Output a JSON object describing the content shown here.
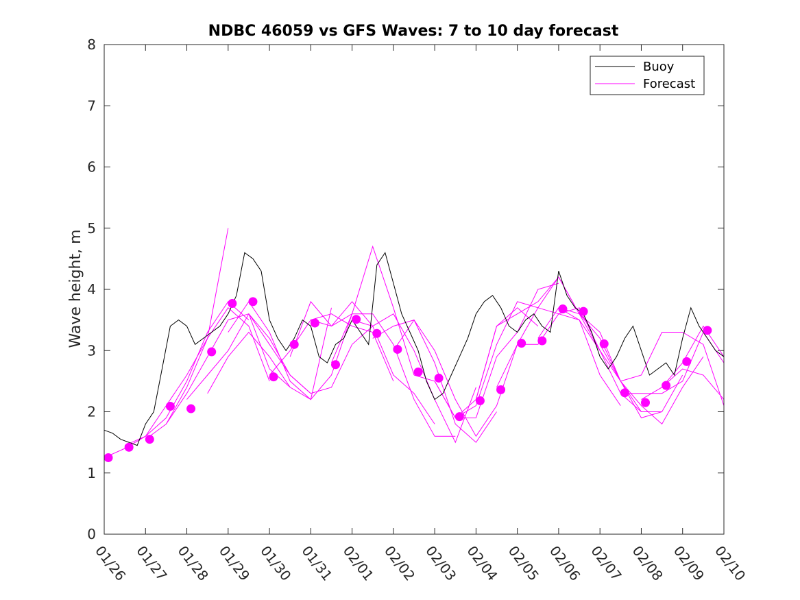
{
  "chart_data": {
    "type": "line",
    "title": "NDBC 46059 vs GFS Waves: 7 to 10 day forecast",
    "xlabel": "",
    "ylabel": "Wave height, m",
    "xlim": [
      0,
      15
    ],
    "ylim": [
      0,
      8
    ],
    "yticks": [
      0,
      1,
      2,
      3,
      4,
      5,
      6,
      7,
      8
    ],
    "xtick_labels": [
      "01/26",
      "01/27",
      "01/28",
      "01/29",
      "01/30",
      "01/31",
      "02/01",
      "02/02",
      "02/03",
      "02/04",
      "02/05",
      "02/06",
      "02/07",
      "02/08",
      "02/09",
      "02/10"
    ],
    "legend": {
      "position": "top-right",
      "entries": [
        "Buoy",
        "Forecast"
      ]
    },
    "colors": {
      "buoy": "#000000",
      "forecast": "#ff00ff"
    },
    "series": [
      {
        "name": "Buoy",
        "x": [
          0.0,
          0.2,
          0.4,
          0.6,
          0.8,
          1.0,
          1.2,
          1.4,
          1.6,
          1.8,
          2.0,
          2.2,
          2.4,
          2.6,
          2.8,
          3.0,
          3.2,
          3.4,
          3.6,
          3.8,
          4.0,
          4.2,
          4.4,
          4.6,
          4.8,
          5.0,
          5.2,
          5.4,
          5.6,
          5.8,
          6.0,
          6.2,
          6.4,
          6.6,
          6.8,
          7.0,
          7.2,
          7.4,
          7.6,
          7.8,
          8.0,
          8.2,
          8.4,
          8.6,
          8.8,
          9.0,
          9.2,
          9.4,
          9.6,
          9.8,
          10.0,
          10.2,
          10.4,
          10.6,
          10.8,
          11.0,
          11.2,
          11.4,
          11.6,
          11.8,
          12.0,
          12.2,
          12.4,
          12.6,
          12.8,
          13.0,
          13.2,
          13.4,
          13.6,
          13.8,
          14.0,
          14.2,
          14.4,
          14.6,
          14.8,
          15.0
        ],
        "y": [
          1.7,
          1.65,
          1.55,
          1.5,
          1.45,
          1.8,
          2.0,
          2.7,
          3.4,
          3.5,
          3.4,
          3.1,
          3.2,
          3.3,
          3.4,
          3.6,
          3.9,
          4.6,
          4.5,
          4.3,
          3.5,
          3.2,
          3.0,
          3.2,
          3.5,
          3.4,
          2.9,
          2.8,
          3.1,
          3.2,
          3.5,
          3.3,
          3.1,
          4.4,
          4.6,
          4.1,
          3.6,
          3.3,
          3.0,
          2.5,
          2.2,
          2.3,
          2.6,
          2.9,
          3.2,
          3.6,
          3.8,
          3.9,
          3.7,
          3.4,
          3.3,
          3.5,
          3.6,
          3.4,
          3.3,
          4.3,
          3.9,
          3.7,
          3.6,
          3.3,
          2.9,
          2.7,
          2.9,
          3.2,
          3.4,
          3.0,
          2.6,
          2.7,
          2.8,
          2.6,
          3.2,
          3.7,
          3.4,
          3.2,
          3.0,
          2.9
        ]
      },
      {
        "name": "Forecast",
        "runs": [
          {
            "x": [
              0.0,
              0.5,
              1.0,
              1.5,
              2.0,
              2.5,
              3.0
            ],
            "y": [
              1.25,
              1.4,
              1.6,
              2.1,
              2.6,
              3.2,
              5.0
            ]
          },
          {
            "x": [
              0.5,
              1.0,
              1.5,
              2.0,
              2.5,
              3.0,
              3.5
            ],
            "y": [
              1.45,
              1.6,
              1.9,
              2.5,
              3.3,
              3.8,
              3.5
            ]
          },
          {
            "x": [
              1.0,
              1.5,
              2.0,
              2.5,
              3.0,
              3.5,
              4.0
            ],
            "y": [
              1.55,
              1.8,
              2.4,
              3.2,
              3.7,
              3.4,
              2.5
            ]
          },
          {
            "x": [
              1.5,
              2.0,
              2.5,
              3.0,
              3.5,
              4.0,
              4.5
            ],
            "y": [
              1.8,
              2.3,
              2.9,
              3.5,
              3.6,
              2.7,
              2.4
            ]
          },
          {
            "x": [
              2.0,
              2.5,
              3.0,
              3.5,
              4.0,
              4.5,
              5.0
            ],
            "y": [
              2.2,
              2.6,
              3.0,
              3.6,
              3.2,
              2.6,
              2.3
            ]
          },
          {
            "x": [
              2.5,
              3.0,
              3.5,
              4.0,
              4.5,
              5.0,
              5.5
            ],
            "y": [
              2.3,
              2.9,
              3.3,
              2.9,
              2.4,
              2.2,
              3.7
            ]
          },
          {
            "x": [
              3.0,
              3.5,
              4.0,
              4.5,
              5.0,
              5.5,
              6.0
            ],
            "y": [
              3.3,
              3.8,
              3.3,
              2.5,
              2.2,
              2.6,
              3.6
            ]
          },
          {
            "x": [
              3.5,
              4.0,
              4.5,
              5.0,
              5.5,
              6.0,
              6.5
            ],
            "y": [
              3.6,
              3.1,
              2.6,
              2.3,
              2.4,
              3.1,
              3.4
            ]
          },
          {
            "x": [
              4.0,
              4.5,
              5.0,
              5.5,
              6.0,
              6.5,
              7.0
            ],
            "y": [
              2.6,
              3.0,
              3.5,
              3.6,
              3.4,
              3.3,
              2.5
            ]
          },
          {
            "x": [
              4.5,
              5.0,
              5.5,
              6.0,
              6.5,
              7.0,
              7.5
            ],
            "y": [
              2.9,
              3.8,
              3.4,
              3.6,
              4.7,
              3.7,
              2.6
            ]
          },
          {
            "x": [
              5.0,
              5.5,
              6.0,
              6.5,
              7.0,
              7.5,
              8.0
            ],
            "y": [
              3.5,
              3.4,
              3.8,
              3.4,
              2.6,
              2.3,
              1.8
            ]
          },
          {
            "x": [
              5.5,
              6.0,
              6.5,
              7.0,
              7.5,
              8.0,
              8.5
            ],
            "y": [
              2.8,
              3.6,
              3.6,
              3.1,
              2.2,
              1.6,
              1.6
            ]
          },
          {
            "x": [
              6.0,
              6.5,
              7.0,
              7.5,
              8.0,
              8.5,
              9.0
            ],
            "y": [
              3.5,
              3.4,
              3.6,
              3.0,
              2.2,
              1.5,
              2.4
            ]
          },
          {
            "x": [
              6.5,
              7.0,
              7.5,
              8.0,
              8.5,
              9.0,
              9.5
            ],
            "y": [
              3.2,
              3.4,
              3.5,
              2.8,
              1.8,
              1.5,
              2.0
            ]
          },
          {
            "x": [
              7.0,
              7.5,
              8.0,
              8.5,
              9.0,
              9.5,
              10.0
            ],
            "y": [
              3.0,
              3.5,
              3.0,
              2.2,
              1.6,
              2.1,
              3.1
            ]
          },
          {
            "x": [
              7.5,
              8.0,
              8.5,
              9.0,
              9.5,
              10.0,
              10.5
            ],
            "y": [
              2.6,
              2.5,
              1.9,
              2.2,
              3.4,
              3.7,
              3.4
            ]
          },
          {
            "x": [
              8.0,
              8.5,
              9.0,
              9.5,
              10.0,
              10.5,
              11.0
            ],
            "y": [
              2.5,
              1.9,
              1.9,
              2.9,
              3.3,
              4.0,
              4.1
            ]
          },
          {
            "x": [
              8.5,
              9.0,
              9.5,
              10.0,
              10.5,
              11.0,
              11.5
            ],
            "y": [
              1.9,
              2.1,
              3.1,
              3.8,
              3.7,
              4.2,
              3.6
            ]
          },
          {
            "x": [
              9.0,
              9.5,
              10.0,
              10.5,
              11.0,
              11.5,
              12.0
            ],
            "y": [
              2.2,
              3.4,
              3.6,
              3.8,
              4.2,
              3.6,
              3.0
            ]
          },
          {
            "x": [
              9.5,
              10.0,
              10.5,
              11.0,
              11.5,
              12.0,
              12.5
            ],
            "y": [
              2.4,
              3.1,
              3.7,
              3.6,
              3.5,
              2.6,
              2.1
            ]
          },
          {
            "x": [
              10.0,
              10.5,
              11.0,
              11.5,
              12.0,
              12.5,
              13.0
            ],
            "y": [
              3.1,
              3.1,
              3.6,
              3.7,
              3.0,
              2.3,
              2.0
            ]
          },
          {
            "x": [
              10.5,
              11.0,
              11.5,
              12.0,
              12.5,
              13.0,
              13.5
            ],
            "y": [
              3.2,
              3.7,
              3.6,
              3.2,
              2.5,
              1.9,
              2.0
            ]
          },
          {
            "x": [
              11.0,
              11.5,
              12.0,
              12.5,
              13.0,
              13.5,
              14.0
            ],
            "y": [
              3.7,
              3.5,
              3.0,
              2.5,
              2.0,
              2.0,
              2.6
            ]
          },
          {
            "x": [
              11.5,
              12.0,
              12.5,
              13.0,
              13.5,
              14.0,
              14.5
            ],
            "y": [
              3.6,
              3.3,
              2.5,
              2.1,
              1.8,
              2.4,
              2.9
            ]
          },
          {
            "x": [
              12.0,
              12.5,
              13.0,
              13.5,
              14.0,
              14.5,
              15.0
            ],
            "y": [
              3.1,
              2.5,
              2.6,
              3.3,
              3.3,
              3.1,
              2.1
            ]
          },
          {
            "x": [
              12.5,
              13.0,
              13.5,
              14.0,
              14.5,
              15.0
            ],
            "y": [
              2.3,
              2.3,
              2.3,
              2.5,
              3.3,
              2.8
            ]
          },
          {
            "x": [
              13.0,
              13.5,
              14.0,
              14.5,
              15.0
            ],
            "y": [
              2.2,
              2.4,
              2.7,
              2.6,
              2.2
            ]
          },
          {
            "x": [
              13.5,
              14.0,
              14.5,
              15.0
            ],
            "y": [
              2.4,
              2.8,
              3.4,
              2.9
            ]
          }
        ]
      },
      {
        "name": "Forecast markers",
        "x": [
          0.1,
          0.6,
          1.1,
          1.6,
          2.1,
          2.6,
          3.1,
          3.6,
          4.1,
          4.6,
          5.1,
          5.6,
          6.1,
          6.6,
          7.1,
          7.6,
          8.1,
          8.6,
          9.1,
          9.6,
          10.1,
          10.6,
          11.1,
          11.6,
          12.1,
          12.6,
          13.1,
          13.6,
          14.1,
          14.6
        ],
        "y": [
          1.25,
          1.42,
          1.55,
          2.09,
          2.05,
          2.98,
          3.77,
          3.8,
          2.57,
          3.1,
          3.45,
          2.77,
          3.51,
          3.28,
          3.02,
          2.65,
          2.55,
          1.92,
          2.18,
          2.36,
          3.12,
          3.16,
          3.68,
          3.64,
          3.11,
          2.31,
          2.15,
          2.43,
          2.82,
          3.33
        ]
      }
    ]
  }
}
